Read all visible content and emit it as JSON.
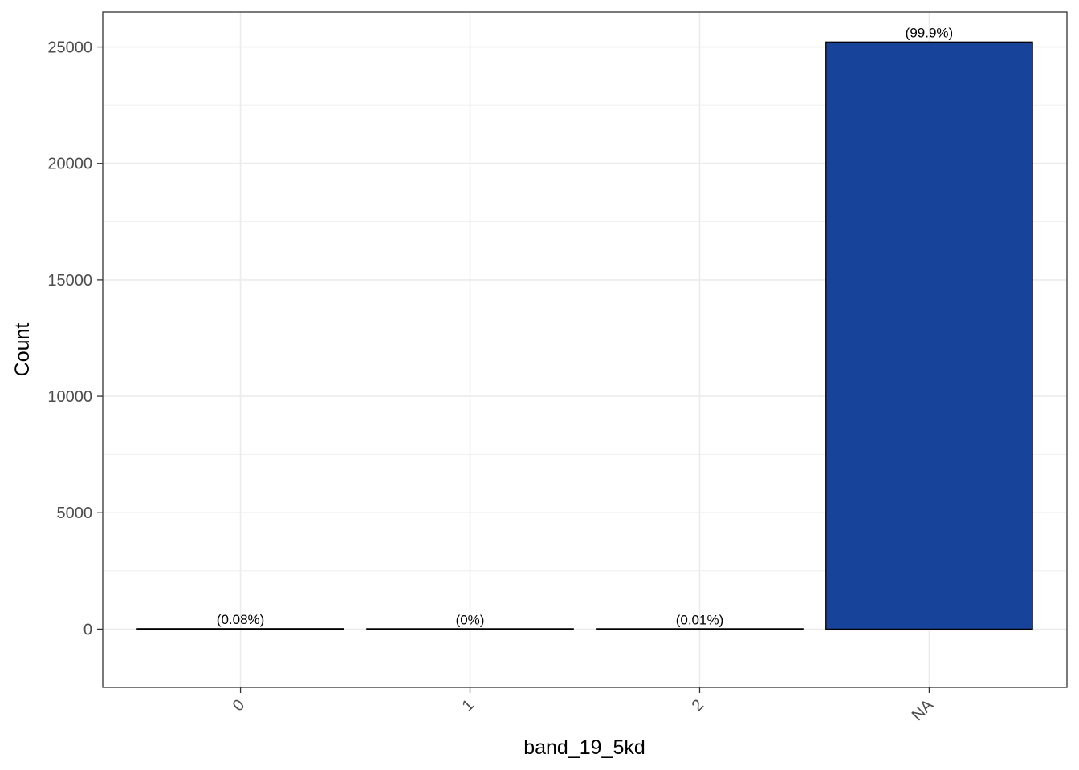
{
  "chart_data": {
    "type": "bar",
    "categories": [
      "0",
      "1",
      "2",
      "NA"
    ],
    "values": [
      20,
      1,
      3,
      25215
    ],
    "bar_labels": [
      "(0.08%)",
      "(0%)",
      "(0.01%)",
      "(99.9%)"
    ],
    "xlabel": "band_19_5kd",
    "ylabel": "Count",
    "ylim": [
      -2500,
      26500
    ],
    "yticks": [
      0,
      5000,
      10000,
      15000,
      20000,
      25000
    ],
    "ytick_labels": [
      "0",
      "5000",
      "10000",
      "15000",
      "20000",
      "25000"
    ],
    "grid": true,
    "bar_color": "#17449A",
    "bar_outline": "#000000",
    "grid_color": "#EBEBEB"
  }
}
